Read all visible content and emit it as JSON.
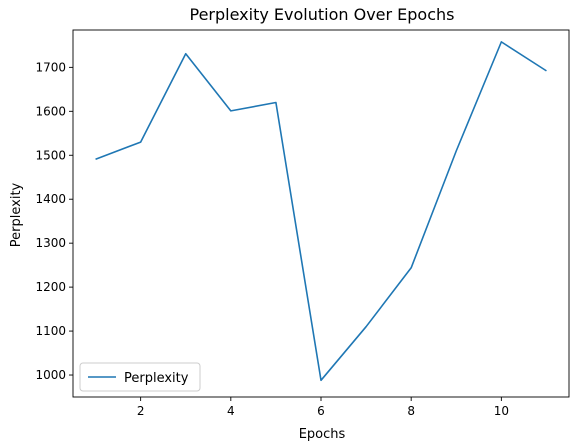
{
  "chart_data": {
    "type": "line",
    "title": "Perplexity Evolution Over Epochs",
    "xlabel": "Epochs",
    "ylabel": "Perplexity",
    "xlim": [
      0.5,
      11.5
    ],
    "ylim": [
      950,
      1785
    ],
    "xticks": [
      2,
      4,
      6,
      8,
      10
    ],
    "yticks": [
      1000,
      1100,
      1200,
      1300,
      1400,
      1500,
      1600,
      1700
    ],
    "grid": false,
    "legend_position": "lower-left",
    "series": [
      {
        "name": "Perplexity",
        "color": "#1f77b4",
        "x": [
          1,
          2,
          3,
          4,
          5,
          6,
          7,
          8,
          9,
          10,
          11
        ],
        "y": [
          1491,
          1530,
          1731,
          1601,
          1620,
          988,
          1110,
          1244,
          1510,
          1758,
          1692
        ]
      }
    ]
  }
}
